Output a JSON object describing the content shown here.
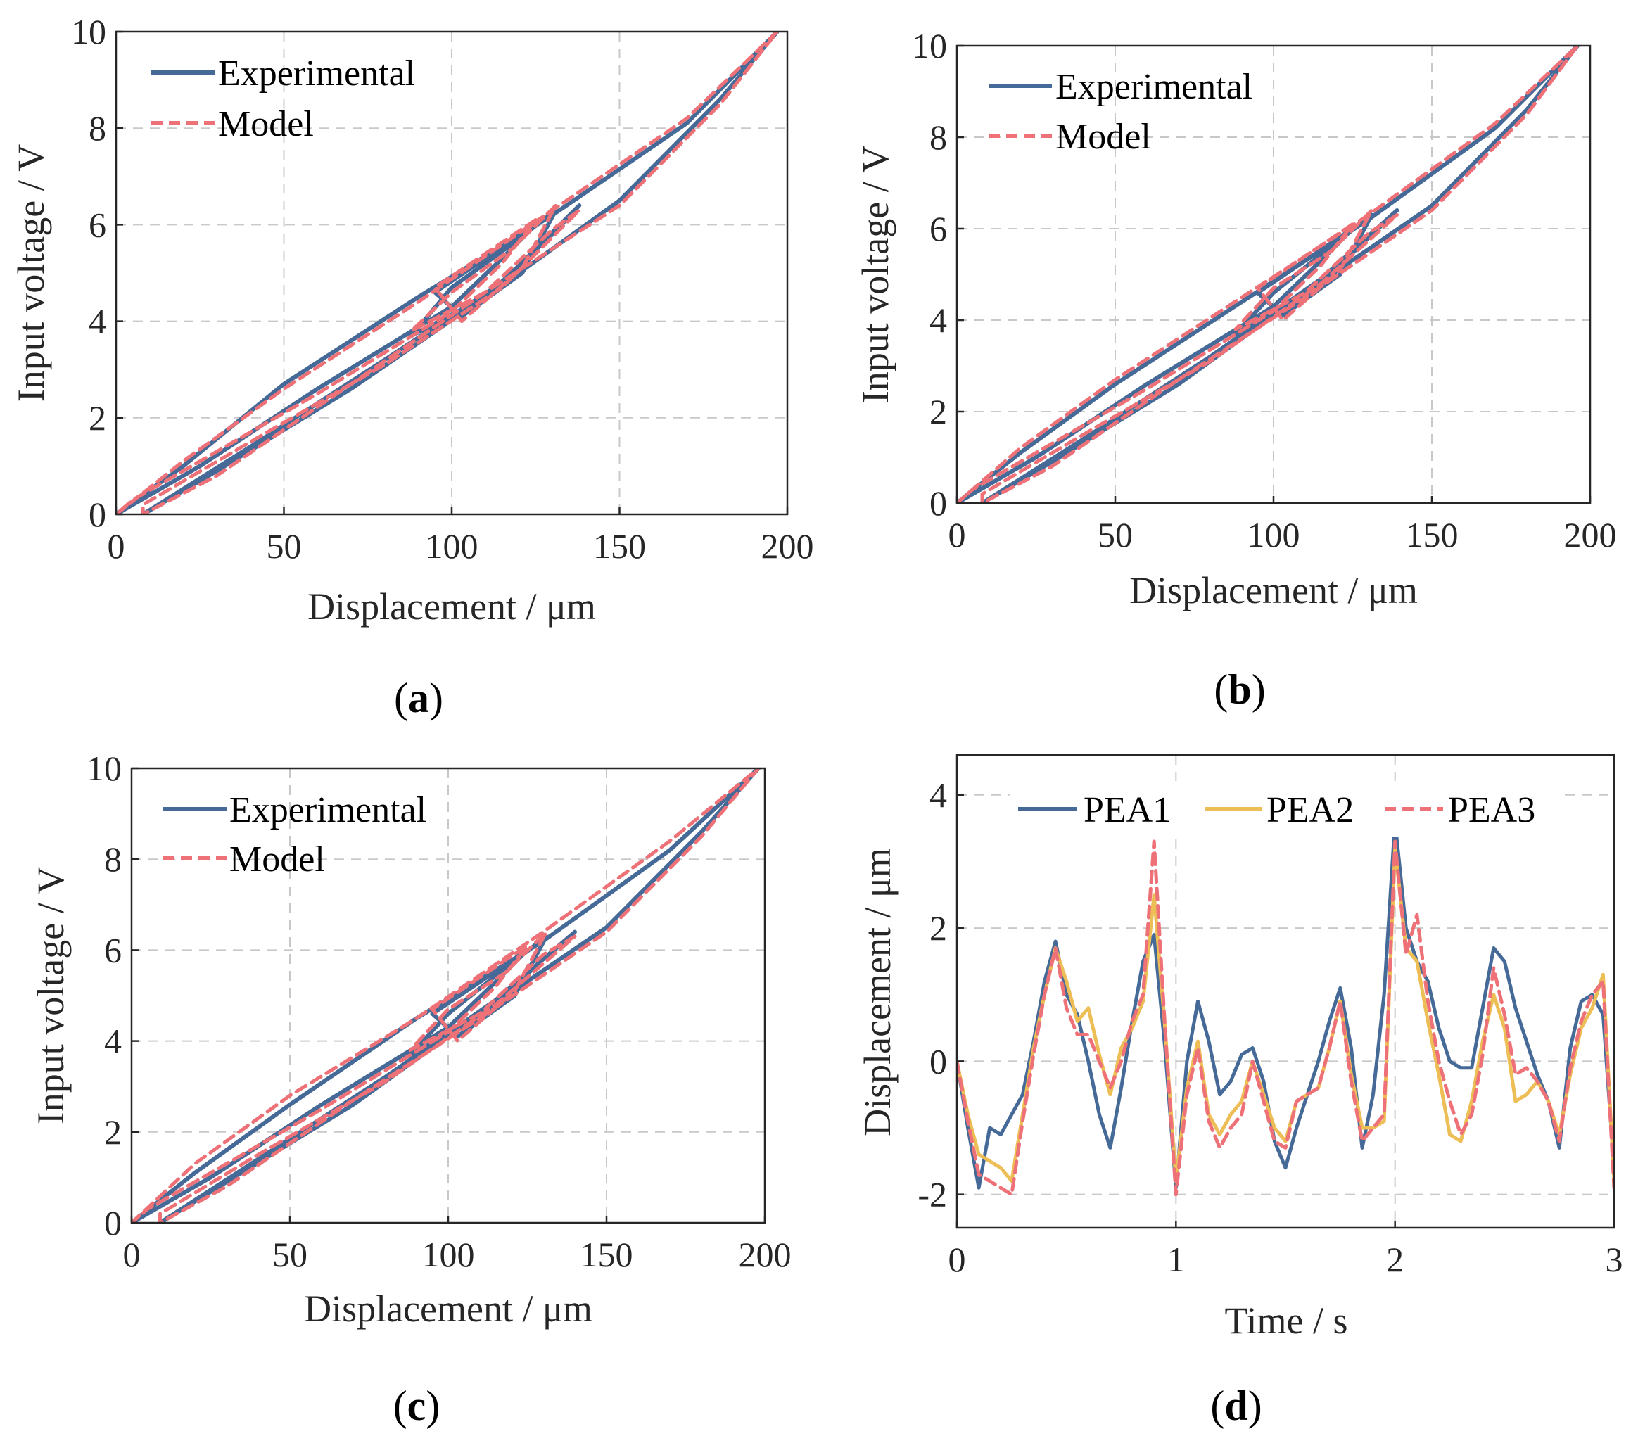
{
  "colors": {
    "experimental": "#466a98",
    "model": "#ee7178",
    "pea1": "#466a98",
    "pea2": "#eebe56",
    "pea3": "#ee7178"
  },
  "panel_labels": [
    {
      "open": "(",
      "letter": "a",
      "close": ")"
    },
    {
      "open": "(",
      "letter": "b",
      "close": ")"
    },
    {
      "open": "(",
      "letter": "c",
      "close": ")"
    },
    {
      "open": "(",
      "letter": "d",
      "close": ")"
    }
  ],
  "chart_data": [
    {
      "type": "line",
      "panel": "a",
      "xlabel": "Displacement / μm",
      "ylabel": "Input voltage / V",
      "xlim": [
        0,
        200
      ],
      "ylim": [
        0,
        10
      ],
      "xticks": [
        "0",
        "50",
        "100",
        "150",
        "200"
      ],
      "yticks": [
        "0",
        "2",
        "4",
        "6",
        "8",
        "10"
      ],
      "grid": true,
      "legend_position": "top-left",
      "legend": [
        "Experimental",
        "Model"
      ],
      "series": [
        {
          "name": "Experimental",
          "style": "solid",
          "x": [
            0,
            20,
            50,
            90,
            130,
            170,
            197,
            180,
            150,
            110,
            70,
            30,
            8,
            8,
            40,
            80,
            115,
            138,
            130,
            110,
            88,
            100,
            118,
            131,
            121,
            103,
            95,
            110,
            125,
            115,
            100,
            60,
            25,
            5,
            0
          ],
          "y": [
            0,
            1.0,
            2.7,
            4.5,
            6.2,
            8.1,
            10,
            8.6,
            6.5,
            4.5,
            2.6,
            0.9,
            0,
            0.0,
            1.4,
            3.2,
            4.8,
            6.4,
            5.8,
            4.5,
            3.7,
            4.7,
            5.6,
            6.3,
            5.0,
            4.1,
            4.6,
            5.3,
            6.0,
            5.3,
            4.3,
            2.6,
            1.0,
            0.2,
            0
          ]
        },
        {
          "name": "Model",
          "style": "dashed",
          "x": [
            0,
            20,
            50,
            90,
            130,
            170,
            197,
            180,
            150,
            110,
            70,
            30,
            8,
            8,
            40,
            80,
            115,
            138,
            130,
            110,
            88,
            100,
            118,
            131,
            121,
            103,
            95,
            110,
            125,
            115,
            100,
            60,
            25,
            5,
            0
          ],
          "y": [
            0,
            1.1,
            2.6,
            4.4,
            6.3,
            8.2,
            10,
            8.5,
            6.4,
            4.6,
            2.7,
            0.8,
            0,
            0.2,
            1.5,
            3.1,
            4.7,
            6.3,
            5.9,
            4.6,
            3.8,
            4.6,
            5.5,
            6.4,
            5.1,
            4.0,
            4.7,
            5.4,
            6.1,
            5.2,
            4.2,
            2.5,
            1.1,
            0.3,
            0
          ]
        }
      ]
    },
    {
      "type": "line",
      "panel": "b",
      "xlabel": "Displacement / μm",
      "ylabel": "Input voltage / V",
      "xlim": [
        0,
        200
      ],
      "ylim": [
        0,
        10
      ],
      "xticks": [
        "0",
        "50",
        "100",
        "150",
        "200"
      ],
      "yticks": [
        "0",
        "2",
        "4",
        "6",
        "8",
        "10"
      ],
      "grid": true,
      "legend_position": "top-left",
      "legend": [
        "Experimental",
        "Model"
      ],
      "series": [
        {
          "name": "Experimental",
          "style": "solid",
          "x": [
            0,
            20,
            50,
            90,
            130,
            170,
            196,
            180,
            150,
            110,
            70,
            30,
            8,
            8,
            40,
            80,
            115,
            139,
            130,
            110,
            88,
            100,
            118,
            131,
            121,
            103,
            95,
            110,
            125,
            115,
            100,
            60,
            25,
            5,
            0
          ],
          "y": [
            0,
            1.1,
            2.6,
            4.4,
            6.2,
            8.2,
            10,
            8.6,
            6.5,
            4.6,
            2.6,
            0.9,
            0,
            0.0,
            1.4,
            3.2,
            4.9,
            6.4,
            5.8,
            4.5,
            3.7,
            4.6,
            5.6,
            6.3,
            5.0,
            4.1,
            4.6,
            5.3,
            6.0,
            5.3,
            4.3,
            2.6,
            1.0,
            0.2,
            0
          ]
        },
        {
          "name": "Model",
          "style": "dashed",
          "x": [
            0,
            20,
            50,
            90,
            130,
            170,
            196,
            180,
            150,
            110,
            70,
            30,
            8,
            8,
            40,
            80,
            115,
            139,
            130,
            110,
            88,
            100,
            118,
            131,
            121,
            103,
            95,
            110,
            125,
            115,
            100,
            60,
            25,
            5,
            0
          ],
          "y": [
            0,
            1.2,
            2.7,
            4.5,
            6.3,
            8.3,
            10,
            8.5,
            6.4,
            4.5,
            2.7,
            0.8,
            0,
            0.2,
            1.5,
            3.1,
            4.8,
            6.3,
            5.9,
            4.6,
            3.8,
            4.7,
            5.5,
            6.4,
            5.1,
            4.0,
            4.7,
            5.4,
            6.1,
            5.2,
            4.2,
            2.5,
            1.1,
            0.3,
            0
          ]
        }
      ]
    },
    {
      "type": "line",
      "panel": "c",
      "xlabel": "Displacement / μm",
      "ylabel": "Input voltage / V",
      "xlim": [
        0,
        200
      ],
      "ylim": [
        0,
        10
      ],
      "xticks": [
        "0",
        "50",
        "100",
        "150",
        "200"
      ],
      "yticks": [
        "0",
        "2",
        "4",
        "6",
        "8",
        "10"
      ],
      "grid": true,
      "legend_position": "top-left",
      "legend": [
        "Experimental",
        "Model"
      ],
      "series": [
        {
          "name": "Experimental",
          "style": "solid",
          "x": [
            0,
            20,
            50,
            90,
            130,
            170,
            198,
            180,
            150,
            110,
            70,
            30,
            9,
            9,
            40,
            80,
            115,
            140,
            130,
            110,
            88,
            100,
            118,
            131,
            121,
            103,
            95,
            110,
            125,
            115,
            100,
            60,
            25,
            5,
            0
          ],
          "y": [
            0,
            1.1,
            2.6,
            4.5,
            6.2,
            8.2,
            10,
            8.6,
            6.5,
            4.6,
            2.6,
            0.9,
            0,
            0.0,
            1.4,
            3.2,
            4.9,
            6.4,
            5.8,
            4.5,
            3.7,
            4.6,
            5.6,
            6.3,
            5.0,
            4.1,
            4.6,
            5.3,
            6.0,
            5.3,
            4.3,
            2.6,
            1.0,
            0.2,
            0
          ]
        },
        {
          "name": "Model",
          "style": "dashed",
          "x": [
            0,
            20,
            50,
            90,
            130,
            170,
            198,
            180,
            150,
            110,
            70,
            30,
            9,
            9,
            40,
            80,
            115,
            140,
            130,
            110,
            88,
            100,
            118,
            131,
            121,
            103,
            95,
            110,
            125,
            115,
            100,
            60,
            25,
            5,
            0
          ],
          "y": [
            0,
            1.3,
            2.8,
            4.5,
            6.4,
            8.4,
            10,
            8.5,
            6.4,
            4.5,
            2.7,
            0.8,
            0,
            0.2,
            1.5,
            3.1,
            4.8,
            6.3,
            5.9,
            4.6,
            3.8,
            4.7,
            5.5,
            6.4,
            5.1,
            4.0,
            4.7,
            5.4,
            6.1,
            5.2,
            4.2,
            2.5,
            1.1,
            0.3,
            0
          ]
        }
      ]
    },
    {
      "type": "line",
      "panel": "d",
      "xlabel": "Time / s",
      "ylabel": "Displacement / μm",
      "xlim": [
        0,
        3
      ],
      "ylim": [
        -2.5,
        4.6
      ],
      "xticks": [
        "0",
        "1",
        "2",
        "3"
      ],
      "yticks": [
        "-2",
        "0",
        "2",
        "4"
      ],
      "grid": true,
      "legend_position": "top",
      "legend": [
        "PEA1",
        "PEA2",
        "PEA3"
      ],
      "x": [
        0,
        0.05,
        0.1,
        0.15,
        0.2,
        0.25,
        0.3,
        0.35,
        0.4,
        0.45,
        0.5,
        0.55,
        0.6,
        0.65,
        0.7,
        0.75,
        0.8,
        0.85,
        0.9,
        0.95,
        1.0,
        1.05,
        1.1,
        1.15,
        1.2,
        1.25,
        1.3,
        1.35,
        1.4,
        1.45,
        1.5,
        1.55,
        1.6,
        1.65,
        1.7,
        1.75,
        1.8,
        1.85,
        1.9,
        1.95,
        2.0,
        2.05,
        2.1,
        2.15,
        2.2,
        2.25,
        2.3,
        2.35,
        2.4,
        2.45,
        2.5,
        2.55,
        2.6,
        2.65,
        2.7,
        2.75,
        2.8,
        2.85,
        2.9,
        2.95,
        3.0
      ],
      "series": [
        {
          "name": "PEA1",
          "style": "solid",
          "values": [
            0,
            -1.0,
            -1.9,
            -1.0,
            -1.1,
            -0.8,
            -0.5,
            0.3,
            1.2,
            1.8,
            1.0,
            0.7,
            0.0,
            -0.8,
            -1.3,
            -0.4,
            0.6,
            1.5,
            1.9,
            0.2,
            -1.9,
            0.0,
            0.9,
            0.3,
            -0.5,
            -0.3,
            0.1,
            0.2,
            -0.3,
            -1.2,
            -1.6,
            -1.0,
            -0.5,
            0.0,
            0.6,
            1.1,
            0.2,
            -1.3,
            -0.5,
            1.0,
            3.6,
            2.0,
            1.5,
            1.2,
            0.5,
            0.0,
            -0.1,
            -0.1,
            0.8,
            1.7,
            1.5,
            0.8,
            0.3,
            -0.2,
            -0.6,
            -1.3,
            0.2,
            0.9,
            1.0,
            0.7,
            -1.6
          ]
        },
        {
          "name": "PEA2",
          "style": "solid",
          "values": [
            0,
            -0.8,
            -1.4,
            -1.5,
            -1.6,
            -1.8,
            -0.8,
            0.2,
            1.0,
            1.7,
            1.2,
            0.6,
            0.8,
            0.1,
            -0.5,
            0.2,
            0.5,
            0.9,
            2.5,
            0.5,
            -1.8,
            -0.4,
            0.3,
            -0.8,
            -1.1,
            -0.8,
            -0.6,
            0.0,
            -0.5,
            -1.0,
            -1.2,
            -0.6,
            -0.5,
            -0.4,
            0.2,
            0.9,
            -0.2,
            -1.0,
            -1.0,
            -0.9,
            3.2,
            1.7,
            1.5,
            0.6,
            -0.2,
            -1.1,
            -1.2,
            -0.6,
            0.3,
            1.0,
            0.5,
            -0.6,
            -0.5,
            -0.3,
            -0.6,
            -1.1,
            -0.2,
            0.5,
            0.8,
            1.3,
            -1.8
          ]
        },
        {
          "name": "PEA3",
          "style": "dashed",
          "values": [
            0,
            -0.9,
            -1.7,
            -1.8,
            -1.9,
            -2.0,
            -0.9,
            0.1,
            1.0,
            1.7,
            0.8,
            0.4,
            0.4,
            0.0,
            -0.4,
            0.0,
            0.6,
            1.0,
            3.3,
            0.5,
            -2.0,
            -0.5,
            0.2,
            -0.9,
            -1.3,
            -1.0,
            -0.8,
            0.0,
            -0.6,
            -1.2,
            -1.3,
            -0.6,
            -0.5,
            -0.4,
            0.2,
            0.9,
            -0.3,
            -1.2,
            -1.0,
            -0.8,
            3.3,
            1.6,
            2.2,
            0.9,
            0.0,
            -0.6,
            -1.1,
            -0.8,
            0.1,
            1.4,
            0.7,
            -0.2,
            -0.1,
            -0.3,
            -0.6,
            -1.2,
            -0.1,
            0.6,
            1.0,
            1.2,
            -1.9
          ]
        }
      ]
    }
  ]
}
